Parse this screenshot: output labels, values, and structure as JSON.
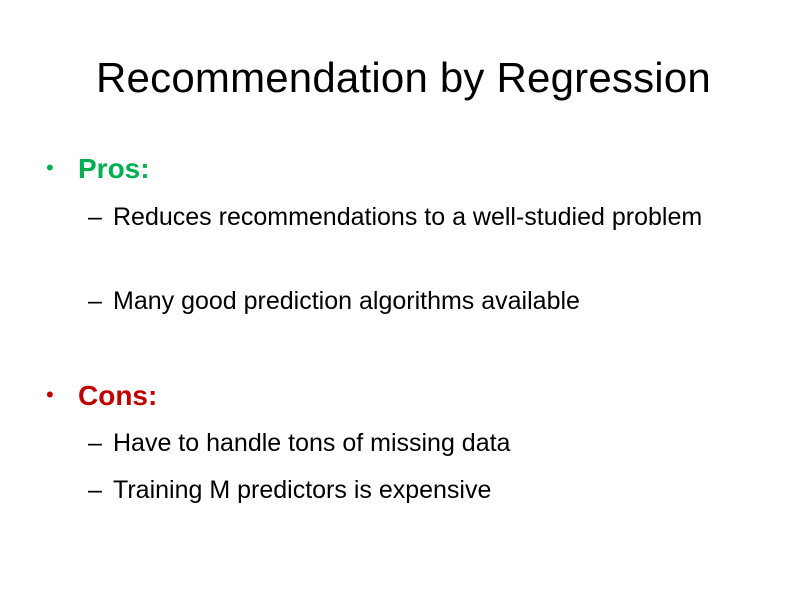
{
  "slide": {
    "title": "Recommendation by Regression",
    "colors": {
      "pros": "#00b050",
      "cons": "#c00000",
      "text": "#000000",
      "background": "#ffffff"
    },
    "bullet_glyph": "•",
    "dash_glyph": "–",
    "sections": [
      {
        "heading": "Pros:",
        "items": [
          "Reduces recommendations to a well-studied problem",
          "Many good prediction algorithms available"
        ]
      },
      {
        "heading": "Cons:",
        "items": [
          "Have to handle tons of missing data",
          "Training M predictors is expensive"
        ]
      }
    ]
  }
}
